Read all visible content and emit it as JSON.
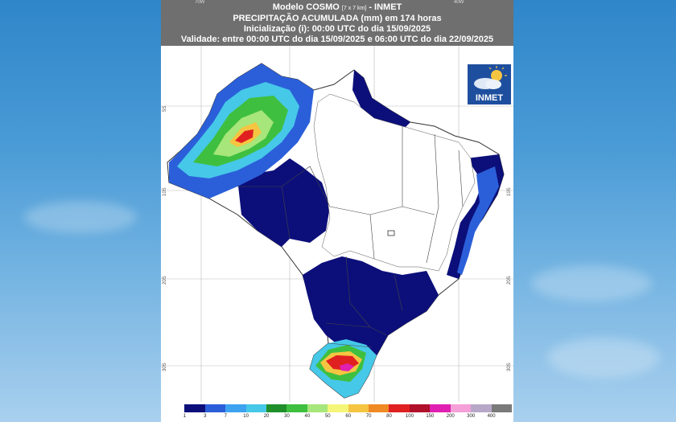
{
  "header": {
    "title_main": "Modelo COSMO",
    "title_res": "[7 x 7 km]",
    "title_org": "- INMET",
    "line2": "PRECIPITAÇÃO ACUMULADA (mm) em 174 horas",
    "line3": "Inicialização (i): 00:00 UTC do dia 15/09/2025",
    "line4": "Validade: entre 00:00 UTC do dia 15/09/2025 e 06:00 UTC do dia 22/09/2025"
  },
  "axis": {
    "lon_ticks": [
      "70W",
      "40W"
    ],
    "lat_ticks_left": [
      "5S",
      "10S",
      "20S",
      "30S"
    ],
    "lat_ticks_right": [
      "10S",
      "20S",
      "30S"
    ]
  },
  "logo": {
    "text": "INMET"
  },
  "legend": {
    "labels": [
      "1",
      "3",
      "7",
      "10",
      "20",
      "30",
      "40",
      "50",
      "60",
      "70",
      "80",
      "100",
      "150",
      "200",
      "300",
      "400"
    ],
    "colors": [
      "#ffffff",
      "#0c0f7a",
      "#2b5fd9",
      "#3da2f0",
      "#46c8e8",
      "#1f8f2a",
      "#3fbf3f",
      "#a7e67a",
      "#f5f57a",
      "#f5c542",
      "#f08a24",
      "#e02020",
      "#b0102a",
      "#e020b0",
      "#f5a0d8",
      "#b8a8c8",
      "#7a7a7a"
    ]
  }
}
